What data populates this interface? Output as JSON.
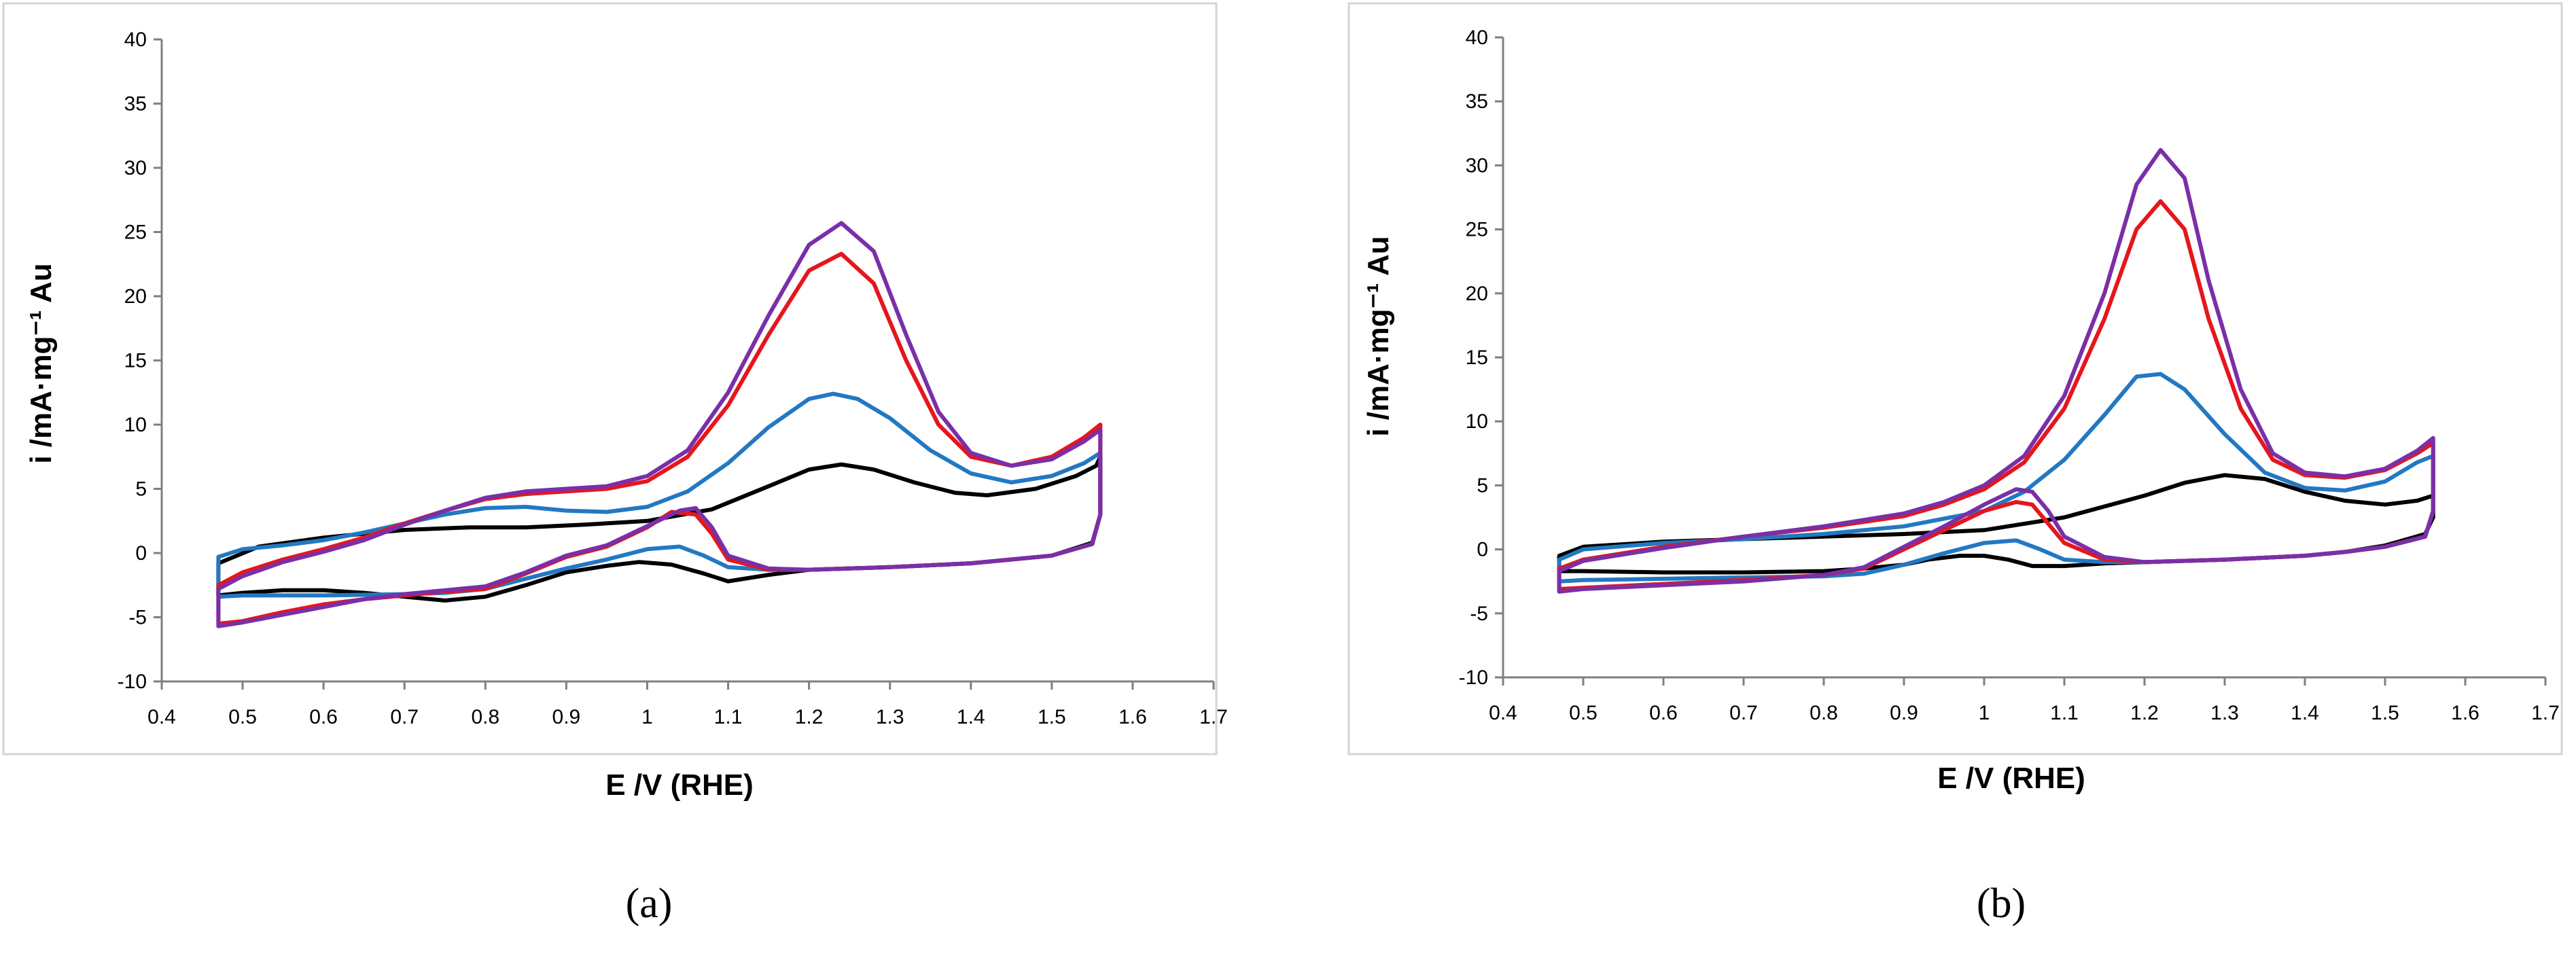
{
  "chart_data": [
    {
      "type": "line",
      "panel_label": "(a)",
      "xlabel": "E /V (RHE)",
      "ylabel": "i /mA·mg⁻¹ Au",
      "xlim": [
        0.4,
        1.7
      ],
      "ylim": [
        -10,
        40
      ],
      "xticks": [
        "0.4",
        "0.5",
        "0.6",
        "0.7",
        "0.8",
        "0.9",
        "1",
        "1.1",
        "1.2",
        "1.3",
        "1.4",
        "1.5",
        "1.6",
        "1.7"
      ],
      "yticks": [
        "-10",
        "-5",
        "0",
        "5",
        "10",
        "15",
        "20",
        "25",
        "30",
        "35",
        "40"
      ],
      "grid": false,
      "legend": "none",
      "series": [
        {
          "name": "black",
          "color": "#000000",
          "x": [
            0.47,
            0.47,
            0.52,
            0.6,
            0.7,
            0.78,
            0.85,
            0.92,
            1.0,
            1.08,
            1.15,
            1.2,
            1.24,
            1.28,
            1.33,
            1.38,
            1.42,
            1.48,
            1.53,
            1.555,
            1.56,
            1.56,
            1.55,
            1.5,
            1.45,
            1.4,
            1.3,
            1.2,
            1.15,
            1.1,
            1.07,
            1.03,
            0.99,
            0.95,
            0.9,
            0.85,
            0.8,
            0.75,
            0.7,
            0.65,
            0.6,
            0.55,
            0.5,
            0.47
          ],
          "y": [
            -1.5,
            -0.8,
            0.5,
            1.2,
            1.8,
            2.0,
            2.0,
            2.2,
            2.5,
            3.4,
            5.2,
            6.5,
            6.9,
            6.5,
            5.5,
            4.7,
            4.5,
            5.0,
            6.0,
            6.8,
            7.5,
            3.0,
            0.8,
            -0.2,
            -0.5,
            -0.8,
            -1.1,
            -1.3,
            -1.7,
            -2.2,
            -1.6,
            -0.9,
            -0.7,
            -1.0,
            -1.5,
            -2.5,
            -3.4,
            -3.7,
            -3.4,
            -3.1,
            -2.9,
            -2.9,
            -3.1,
            -3.3
          ]
        },
        {
          "name": "blue",
          "color": "#2278c2",
          "x": [
            0.47,
            0.47,
            0.5,
            0.55,
            0.6,
            0.65,
            0.7,
            0.75,
            0.8,
            0.85,
            0.9,
            0.95,
            1.0,
            1.05,
            1.1,
            1.15,
            1.2,
            1.23,
            1.26,
            1.3,
            1.35,
            1.4,
            1.45,
            1.5,
            1.54,
            1.56,
            1.56,
            1.55,
            1.5,
            1.45,
            1.4,
            1.3,
            1.2,
            1.15,
            1.1,
            1.07,
            1.04,
            1.0,
            0.95,
            0.9,
            0.85,
            0.8,
            0.75,
            0.7,
            0.6,
            0.5,
            0.47
          ],
          "y": [
            -1.0,
            -0.3,
            0.3,
            0.6,
            1.0,
            1.6,
            2.3,
            3.0,
            3.5,
            3.6,
            3.3,
            3.2,
            3.6,
            4.8,
            7.0,
            9.8,
            12.0,
            12.4,
            12.0,
            10.5,
            8.0,
            6.2,
            5.5,
            6.0,
            7.0,
            7.8,
            3.0,
            0.7,
            -0.2,
            -0.5,
            -0.8,
            -1.1,
            -1.3,
            -1.3,
            -1.1,
            -0.2,
            0.5,
            0.3,
            -0.5,
            -1.2,
            -2.0,
            -2.8,
            -3.1,
            -3.2,
            -3.3,
            -3.3,
            -3.4
          ]
        },
        {
          "name": "red",
          "color": "#e5161d",
          "x": [
            0.47,
            0.47,
            0.5,
            0.55,
            0.6,
            0.65,
            0.7,
            0.75,
            0.8,
            0.85,
            0.9,
            0.95,
            1.0,
            1.05,
            1.1,
            1.15,
            1.2,
            1.24,
            1.28,
            1.32,
            1.36,
            1.4,
            1.45,
            1.5,
            1.54,
            1.56,
            1.56,
            1.55,
            1.5,
            1.45,
            1.4,
            1.3,
            1.2,
            1.15,
            1.1,
            1.08,
            1.06,
            1.03,
            1.0,
            0.95,
            0.9,
            0.85,
            0.8,
            0.75,
            0.7,
            0.65,
            0.6,
            0.55,
            0.5,
            0.47
          ],
          "y": [
            -3.5,
            -2.5,
            -1.5,
            -0.5,
            0.3,
            1.2,
            2.3,
            3.3,
            4.2,
            4.6,
            4.8,
            5.0,
            5.6,
            7.5,
            11.5,
            17.0,
            22.0,
            23.3,
            21.0,
            15.0,
            10.0,
            7.5,
            6.8,
            7.5,
            9.0,
            10.0,
            3.0,
            0.7,
            -0.2,
            -0.5,
            -0.8,
            -1.1,
            -1.3,
            -1.3,
            -0.5,
            1.5,
            3.0,
            3.2,
            2.0,
            0.5,
            -0.3,
            -1.6,
            -2.8,
            -3.0,
            -3.3,
            -3.6,
            -4.0,
            -4.6,
            -5.3,
            -5.5
          ]
        },
        {
          "name": "purple",
          "color": "#7a2fa8",
          "x": [
            0.47,
            0.47,
            0.5,
            0.55,
            0.6,
            0.65,
            0.7,
            0.75,
            0.8,
            0.85,
            0.9,
            0.95,
            1.0,
            1.05,
            1.1,
            1.15,
            1.2,
            1.24,
            1.28,
            1.32,
            1.36,
            1.4,
            1.45,
            1.5,
            1.54,
            1.56,
            1.56,
            1.55,
            1.5,
            1.45,
            1.4,
            1.3,
            1.2,
            1.15,
            1.1,
            1.08,
            1.06,
            1.04,
            1.0,
            0.95,
            0.9,
            0.85,
            0.8,
            0.75,
            0.7,
            0.65,
            0.6,
            0.55,
            0.5,
            0.47
          ],
          "y": [
            -3.8,
            -2.8,
            -1.8,
            -0.7,
            0.1,
            1.0,
            2.2,
            3.3,
            4.3,
            4.8,
            5.0,
            5.2,
            6.0,
            8.0,
            12.5,
            18.5,
            24.0,
            25.7,
            23.5,
            17.0,
            11.0,
            7.8,
            6.8,
            7.3,
            8.7,
            9.6,
            3.0,
            0.7,
            -0.2,
            -0.5,
            -0.8,
            -1.1,
            -1.3,
            -1.2,
            -0.2,
            2.0,
            3.5,
            3.3,
            2.1,
            0.6,
            -0.2,
            -1.5,
            -2.6,
            -2.9,
            -3.2,
            -3.6,
            -4.2,
            -4.8,
            -5.4,
            -5.7
          ]
        }
      ]
    },
    {
      "type": "line",
      "panel_label": "(b)",
      "xlabel": "E /V (RHE)",
      "ylabel": "i /mA·mg⁻¹ Au",
      "xlim": [
        0.4,
        1.7
      ],
      "ylim": [
        -10,
        40
      ],
      "xticks": [
        "0.4",
        "0.5",
        "0.6",
        "0.7",
        "0.8",
        "0.9",
        "1",
        "1.1",
        "1.2",
        "1.3",
        "1.4",
        "1.5",
        "1.6",
        "1.7"
      ],
      "yticks": [
        "-10",
        "-5",
        "0",
        "5",
        "10",
        "15",
        "20",
        "25",
        "30",
        "35",
        "40"
      ],
      "grid": false,
      "legend": "none",
      "series": [
        {
          "name": "black",
          "color": "#000000",
          "x": [
            0.47,
            0.47,
            0.5,
            0.6,
            0.7,
            0.8,
            0.9,
            1.0,
            1.1,
            1.2,
            1.25,
            1.3,
            1.35,
            1.4,
            1.45,
            1.5,
            1.54,
            1.56,
            1.56,
            1.55,
            1.5,
            1.45,
            1.4,
            1.3,
            1.2,
            1.15,
            1.1,
            1.06,
            1.03,
            1.0,
            0.97,
            0.93,
            0.9,
            0.85,
            0.8,
            0.7,
            0.6,
            0.5,
            0.47
          ],
          "y": [
            -1.5,
            -0.5,
            0.2,
            0.6,
            0.8,
            1.0,
            1.2,
            1.5,
            2.5,
            4.2,
            5.2,
            5.8,
            5.5,
            4.5,
            3.8,
            3.5,
            3.8,
            4.2,
            2.5,
            1.2,
            0.3,
            -0.2,
            -0.5,
            -0.8,
            -1.0,
            -1.1,
            -1.3,
            -1.3,
            -0.8,
            -0.5,
            -0.5,
            -0.8,
            -1.2,
            -1.5,
            -1.7,
            -1.8,
            -1.8,
            -1.7,
            -1.7
          ]
        },
        {
          "name": "blue",
          "color": "#2278c2",
          "x": [
            0.47,
            0.47,
            0.5,
            0.6,
            0.7,
            0.8,
            0.9,
            1.0,
            1.05,
            1.1,
            1.15,
            1.19,
            1.22,
            1.25,
            1.3,
            1.35,
            1.4,
            1.45,
            1.5,
            1.54,
            1.56,
            1.56,
            1.55,
            1.5,
            1.45,
            1.4,
            1.3,
            1.2,
            1.15,
            1.1,
            1.07,
            1.04,
            1.0,
            0.95,
            0.9,
            0.85,
            0.8,
            0.7,
            0.6,
            0.5,
            0.47
          ],
          "y": [
            -2.0,
            -0.8,
            0.0,
            0.5,
            0.8,
            1.2,
            1.8,
            3.0,
            4.5,
            7.0,
            10.5,
            13.5,
            13.7,
            12.5,
            9.0,
            6.0,
            4.8,
            4.6,
            5.3,
            6.8,
            7.3,
            3.0,
            1.0,
            0.2,
            -0.2,
            -0.5,
            -0.8,
            -1.0,
            -1.0,
            -0.8,
            0.0,
            0.7,
            0.5,
            -0.3,
            -1.2,
            -1.9,
            -2.1,
            -2.2,
            -2.3,
            -2.4,
            -2.5
          ]
        },
        {
          "name": "red",
          "color": "#e5161d",
          "x": [
            0.47,
            0.47,
            0.5,
            0.6,
            0.7,
            0.8,
            0.9,
            0.95,
            1.0,
            1.05,
            1.1,
            1.15,
            1.19,
            1.22,
            1.25,
            1.28,
            1.32,
            1.36,
            1.4,
            1.45,
            1.5,
            1.54,
            1.56,
            1.56,
            1.55,
            1.5,
            1.45,
            1.4,
            1.3,
            1.2,
            1.15,
            1.1,
            1.08,
            1.06,
            1.04,
            1.0,
            0.95,
            0.9,
            0.85,
            0.8,
            0.7,
            0.6,
            0.5,
            0.47
          ],
          "y": [
            -3.0,
            -1.5,
            -0.8,
            0.2,
            1.0,
            1.7,
            2.6,
            3.5,
            4.7,
            6.8,
            11.0,
            18.0,
            25.0,
            27.2,
            25.0,
            18.0,
            11.0,
            7.0,
            5.8,
            5.6,
            6.2,
            7.5,
            8.3,
            3.0,
            1.0,
            0.2,
            -0.2,
            -0.5,
            -0.8,
            -1.0,
            -0.8,
            0.5,
            2.0,
            3.5,
            3.7,
            3.0,
            1.5,
            0.0,
            -1.5,
            -2.0,
            -2.4,
            -2.7,
            -3.0,
            -3.1
          ]
        },
        {
          "name": "purple",
          "color": "#7a2fa8",
          "x": [
            0.47,
            0.47,
            0.5,
            0.6,
            0.7,
            0.8,
            0.9,
            0.95,
            1.0,
            1.05,
            1.1,
            1.15,
            1.19,
            1.22,
            1.25,
            1.28,
            1.32,
            1.36,
            1.4,
            1.45,
            1.5,
            1.54,
            1.56,
            1.56,
            1.55,
            1.5,
            1.45,
            1.4,
            1.3,
            1.2,
            1.15,
            1.1,
            1.08,
            1.06,
            1.04,
            1.0,
            0.95,
            0.9,
            0.85,
            0.8,
            0.7,
            0.6,
            0.5,
            0.47
          ],
          "y": [
            -3.2,
            -1.7,
            -0.9,
            0.1,
            1.0,
            1.8,
            2.8,
            3.7,
            5.0,
            7.3,
            12.0,
            20.0,
            28.5,
            31.2,
            29.0,
            21.0,
            12.5,
            7.5,
            6.0,
            5.7,
            6.3,
            7.7,
            8.7,
            3.0,
            1.0,
            0.2,
            -0.2,
            -0.5,
            -0.8,
            -1.0,
            -0.6,
            1.0,
            3.0,
            4.5,
            4.7,
            3.5,
            1.8,
            0.2,
            -1.4,
            -2.0,
            -2.5,
            -2.8,
            -3.1,
            -3.3
          ]
        }
      ]
    }
  ]
}
